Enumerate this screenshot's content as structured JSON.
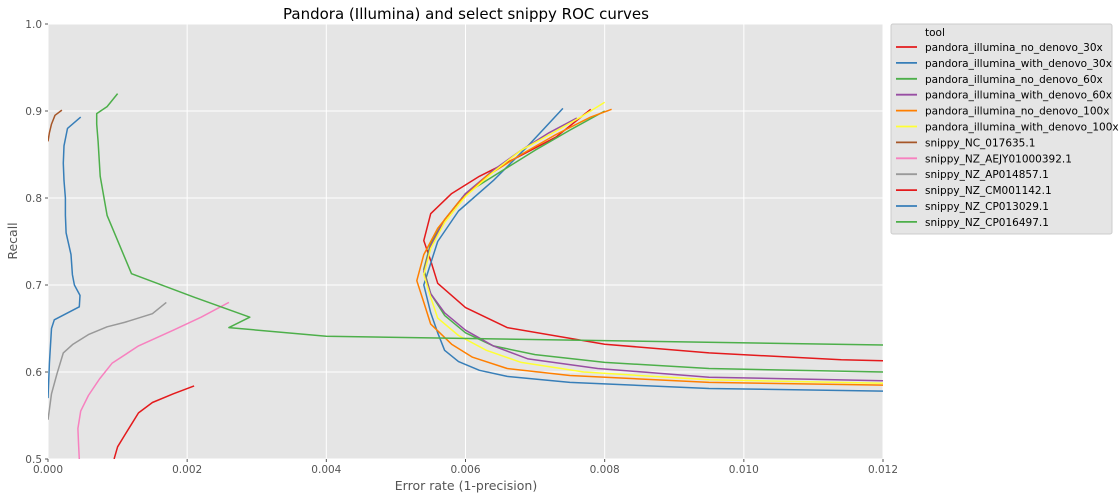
{
  "chart_data": {
    "type": "line",
    "title": "Pandora (Illumina) and select snippy ROC curves",
    "xlabel": "Error rate (1-precision)",
    "ylabel": "Recall",
    "xlim": [
      0,
      0.012
    ],
    "ylim": [
      0.5,
      1.0
    ],
    "xticks": [
      0.0,
      0.002,
      0.004,
      0.006,
      0.008,
      0.01,
      0.012
    ],
    "xtick_labels": [
      "0.000",
      "0.002",
      "0.004",
      "0.006",
      "0.008",
      "0.010",
      "0.012"
    ],
    "yticks": [
      0.5,
      0.6,
      0.7,
      0.8,
      0.9,
      1.0
    ],
    "ytick_labels": [
      "0.5",
      "0.6",
      "0.7",
      "0.8",
      "0.9",
      "1.0"
    ],
    "grid": true,
    "background": "#e5e5e5",
    "legend": {
      "title": "tool",
      "placement": "outside-right"
    },
    "series": [
      {
        "name": "pandora_illumina_no_denovo_30x",
        "color": "#e41a1c",
        "x": [
          0.012,
          0.0114,
          0.0095,
          0.008,
          0.0066,
          0.006,
          0.0056,
          0.0055,
          0.0054,
          0.0055,
          0.0058,
          0.0062,
          0.0067,
          0.0073,
          0.0078
        ],
        "y": [
          0.613,
          0.614,
          0.622,
          0.632,
          0.651,
          0.674,
          0.702,
          0.728,
          0.751,
          0.782,
          0.805,
          0.825,
          0.845,
          0.87,
          0.902
        ]
      },
      {
        "name": "pandora_illumina_with_denovo_30x",
        "color": "#377eb8",
        "x": [
          0.012,
          0.0095,
          0.0075,
          0.0066,
          0.0062,
          0.0059,
          0.0057,
          0.0056,
          0.0055,
          0.0054,
          0.0055,
          0.0056,
          0.0059,
          0.0064,
          0.0069,
          0.0074
        ],
        "y": [
          0.578,
          0.581,
          0.588,
          0.595,
          0.602,
          0.612,
          0.625,
          0.645,
          0.668,
          0.7,
          0.725,
          0.75,
          0.785,
          0.82,
          0.86,
          0.903
        ]
      },
      {
        "name": "pandora_illumina_no_denovo_60x",
        "color": "#4daf4a",
        "x": [
          0.012,
          0.0095,
          0.008,
          0.007,
          0.0064,
          0.006,
          0.0057,
          0.0055,
          0.0054,
          0.0055,
          0.0057,
          0.006,
          0.0065,
          0.007,
          0.0075,
          0.008
        ],
        "y": [
          0.6,
          0.604,
          0.611,
          0.62,
          0.63,
          0.645,
          0.665,
          0.69,
          0.718,
          0.748,
          0.775,
          0.805,
          0.83,
          0.855,
          0.878,
          0.9
        ]
      },
      {
        "name": "pandora_illumina_with_denovo_60x",
        "color": "#984ea3",
        "x": [
          0.012,
          0.0095,
          0.0079,
          0.0069,
          0.0064,
          0.006,
          0.0057,
          0.0055,
          0.0054,
          0.0055,
          0.0057,
          0.006,
          0.0064,
          0.0068,
          0.0072,
          0.0076
        ],
        "y": [
          0.59,
          0.594,
          0.604,
          0.615,
          0.63,
          0.648,
          0.668,
          0.69,
          0.715,
          0.745,
          0.775,
          0.805,
          0.832,
          0.855,
          0.875,
          0.892
        ]
      },
      {
        "name": "pandora_illumina_no_denovo_100x",
        "color": "#ff7f00",
        "x": [
          0.012,
          0.0095,
          0.0075,
          0.0066,
          0.0061,
          0.0058,
          0.0055,
          0.0054,
          0.0053,
          0.0054,
          0.0056,
          0.0059,
          0.0063,
          0.0068,
          0.0073,
          0.0078,
          0.0081
        ],
        "y": [
          0.585,
          0.588,
          0.596,
          0.604,
          0.617,
          0.632,
          0.655,
          0.68,
          0.705,
          0.735,
          0.765,
          0.795,
          0.825,
          0.85,
          0.873,
          0.893,
          0.902
        ]
      },
      {
        "name": "pandora_illumina_with_denovo_100x",
        "color": "#ffff33",
        "x": [
          0.012,
          0.0095,
          0.0077,
          0.0068,
          0.0063,
          0.0059,
          0.0056,
          0.0055,
          0.0054,
          0.0055,
          0.0057,
          0.006,
          0.0064,
          0.0068,
          0.0073,
          0.0077,
          0.008
        ],
        "y": [
          0.587,
          0.591,
          0.6,
          0.611,
          0.625,
          0.642,
          0.662,
          0.686,
          0.712,
          0.742,
          0.772,
          0.802,
          0.83,
          0.855,
          0.877,
          0.895,
          0.91
        ]
      },
      {
        "name": "snippy_NC_017635.1",
        "color": "#a65628",
        "x": [
          0.0,
          2e-05,
          5e-05,
          0.0001,
          0.0002
        ],
        "y": [
          0.865,
          0.875,
          0.885,
          0.895,
          0.901
        ]
      },
      {
        "name": "snippy_NZ_AEJY01000392.1",
        "color": "#f781bf",
        "x": [
          0.00045,
          0.00044,
          0.00043,
          0.00047,
          0.00058,
          0.00074,
          0.00092,
          0.0013,
          0.0018,
          0.0022,
          0.0026
        ],
        "y": [
          0.5,
          0.516,
          0.535,
          0.555,
          0.573,
          0.592,
          0.61,
          0.63,
          0.648,
          0.663,
          0.68
        ]
      },
      {
        "name": "snippy_NZ_AP014857.1",
        "color": "#999999",
        "x": [
          0.0,
          5e-05,
          0.00013,
          0.00022,
          0.00036,
          0.00058,
          0.00085,
          0.0011,
          0.0015,
          0.0017
        ],
        "y": [
          0.545,
          0.575,
          0.598,
          0.622,
          0.632,
          0.643,
          0.652,
          0.657,
          0.667,
          0.68
        ]
      },
      {
        "name": "snippy_NZ_CM001142.1",
        "color": "#e41a1c",
        "x": [
          0.00095,
          0.001,
          0.0011,
          0.0012,
          0.0013,
          0.0015,
          0.0018,
          0.0021
        ],
        "y": [
          0.5,
          0.514,
          0.527,
          0.54,
          0.553,
          0.565,
          0.575,
          0.584
        ]
      },
      {
        "name": "snippy_NZ_CP013029.1",
        "color": "#377eb8",
        "x": [
          0.0,
          2e-05,
          5e-05,
          9e-05,
          0.00045,
          0.00046,
          0.00038,
          0.00035,
          0.00033,
          0.00026,
          0.00025,
          0.00025,
          0.00023,
          0.00022,
          0.00023,
          0.00028,
          0.00047
        ],
        "y": [
          0.57,
          0.61,
          0.65,
          0.66,
          0.675,
          0.688,
          0.7,
          0.712,
          0.735,
          0.76,
          0.78,
          0.8,
          0.82,
          0.84,
          0.86,
          0.88,
          0.893
        ]
      },
      {
        "name": "snippy_NZ_CP016497.1",
        "color": "#4daf4a",
        "x": [
          0.012,
          0.004,
          0.0026,
          0.0029,
          0.0021,
          0.0012,
          0.00085,
          0.00075,
          0.00072,
          0.0007,
          0.0007,
          0.00085,
          0.001
        ],
        "y": [
          0.631,
          0.641,
          0.651,
          0.663,
          0.686,
          0.713,
          0.78,
          0.825,
          0.865,
          0.885,
          0.897,
          0.905,
          0.92
        ]
      }
    ]
  }
}
